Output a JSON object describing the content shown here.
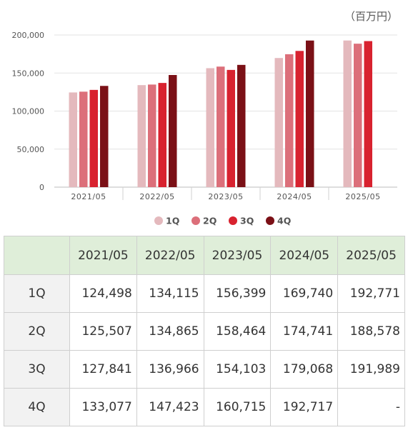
{
  "unit_label": "（百万円）",
  "chart_data": {
    "type": "bar",
    "categories": [
      "2021/05",
      "2022/05",
      "2023/05",
      "2024/05",
      "2025/05"
    ],
    "series": [
      {
        "name": "1Q",
        "color": "#e4b9bd",
        "values": [
          124498,
          134115,
          156399,
          169740,
          192771
        ]
      },
      {
        "name": "2Q",
        "color": "#dc6f7a",
        "values": [
          125507,
          134865,
          158464,
          174741,
          188578
        ]
      },
      {
        "name": "3Q",
        "color": "#d8222f",
        "values": [
          127841,
          136966,
          154103,
          179068,
          191989
        ]
      },
      {
        "name": "4Q",
        "color": "#7b1016",
        "values": [
          133077,
          147423,
          160715,
          192717,
          null
        ]
      }
    ],
    "y_ticks": [
      "0",
      "50,000",
      "100,000",
      "150,000",
      "200,000"
    ],
    "ylim": [
      0,
      200000
    ],
    "grid": true,
    "legend": "bottom"
  },
  "table": {
    "headers": [
      "",
      "2021/05",
      "2022/05",
      "2023/05",
      "2024/05",
      "2025/05"
    ],
    "rows": [
      {
        "label": "1Q",
        "cells": [
          "124,498",
          "134,115",
          "156,399",
          "169,740",
          "192,771"
        ]
      },
      {
        "label": "2Q",
        "cells": [
          "125,507",
          "134,865",
          "158,464",
          "174,741",
          "188,578"
        ]
      },
      {
        "label": "3Q",
        "cells": [
          "127,841",
          "136,966",
          "154,103",
          "179,068",
          "191,989"
        ]
      },
      {
        "label": "4Q",
        "cells": [
          "133,077",
          "147,423",
          "160,715",
          "192,717",
          "-"
        ]
      }
    ]
  }
}
